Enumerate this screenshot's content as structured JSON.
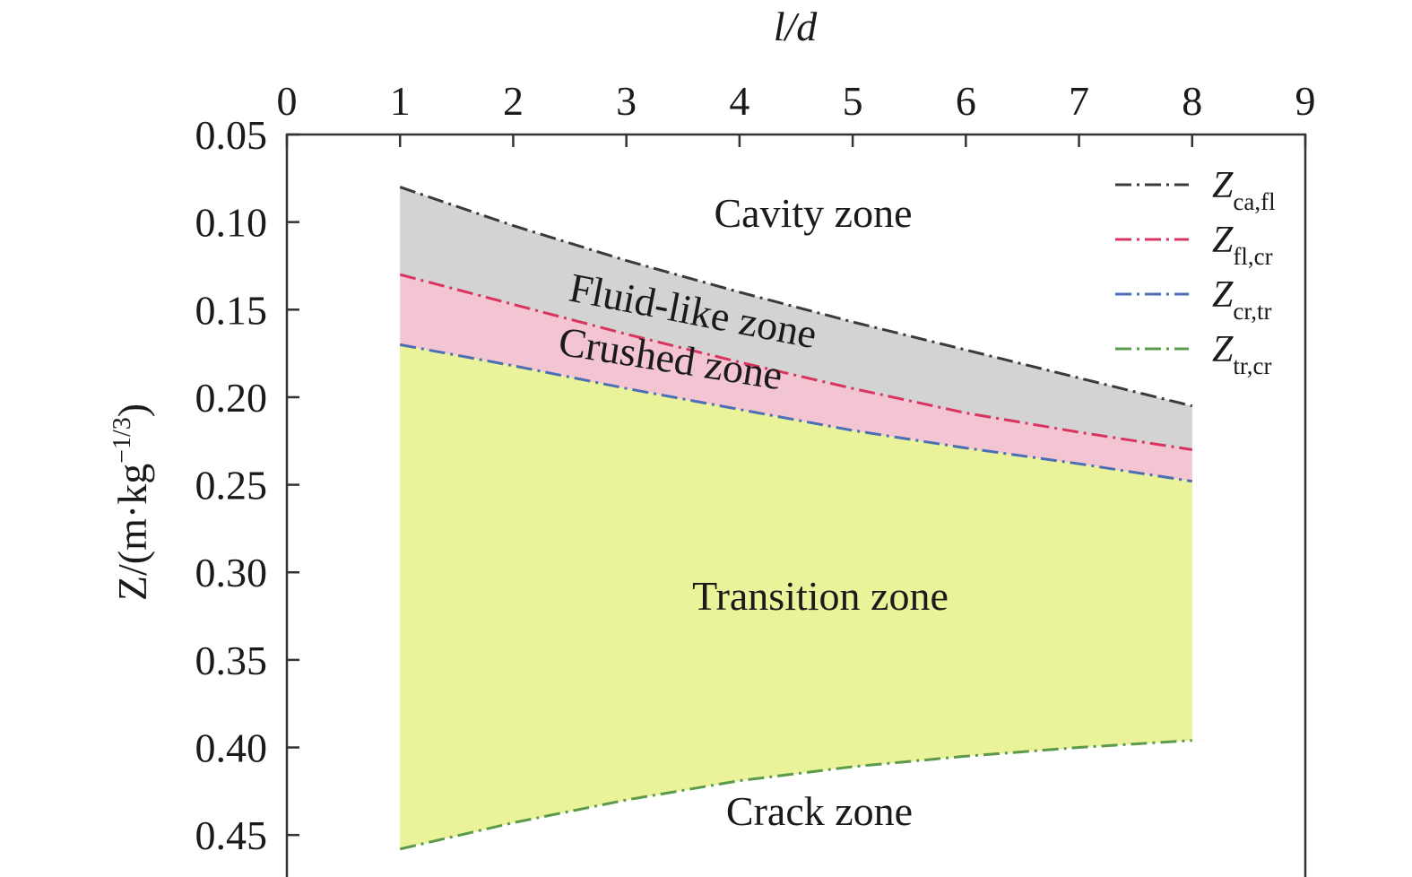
{
  "chart_data": {
    "type": "area",
    "xlabel": "l/d",
    "ylabel": "Z/(m·kg^−1/3)",
    "xlim": [
      0,
      9
    ],
    "ylim": [
      0.05,
      0.475
    ],
    "y_inverted": true,
    "x_axis_position": "top",
    "x_ticks": [
      "0",
      "1",
      "2",
      "3",
      "4",
      "5",
      "6",
      "7",
      "8",
      "9"
    ],
    "y_ticks": [
      "0.05",
      "0.10",
      "0.15",
      "0.20",
      "0.25",
      "0.30",
      "0.35",
      "0.40",
      "0.45"
    ],
    "x": [
      1,
      2,
      3,
      4,
      5,
      6,
      7,
      8
    ],
    "series": [
      {
        "key": "ca_fl",
        "name": "Z",
        "subscript": "ca,fl",
        "color": "#3a3a3a",
        "values": [
          0.08,
          0.102,
          0.122,
          0.14,
          0.157,
          0.173,
          0.189,
          0.205
        ]
      },
      {
        "key": "fl_cr",
        "name": "Z",
        "subscript": "fl,cr",
        "color": "#d8345f",
        "values": [
          0.13,
          0.147,
          0.164,
          0.18,
          0.195,
          0.209,
          0.22,
          0.23
        ]
      },
      {
        "key": "cr_tr",
        "name": "Z",
        "subscript": "cr,tr",
        "color": "#4a6fb5",
        "values": [
          0.17,
          0.182,
          0.195,
          0.207,
          0.219,
          0.229,
          0.238,
          0.248
        ]
      },
      {
        "key": "tr_cr",
        "name": "Z",
        "subscript": "tr,cr",
        "color": "#5b9a4a",
        "values": [
          0.458,
          0.443,
          0.43,
          0.419,
          0.411,
          0.405,
          0.4,
          0.396
        ]
      }
    ],
    "zones": [
      {
        "label": "Cavity zone",
        "fill": null
      },
      {
        "label": "Fluid-like zone",
        "fill": "#d3d3d3"
      },
      {
        "label": "Crushed zone",
        "fill": "#f3c4d2"
      },
      {
        "label": "Transition zone",
        "fill": "#eaf29a"
      },
      {
        "label": "Crack zone",
        "fill": null
      }
    ],
    "legend_position": "top-right",
    "grid": false
  }
}
